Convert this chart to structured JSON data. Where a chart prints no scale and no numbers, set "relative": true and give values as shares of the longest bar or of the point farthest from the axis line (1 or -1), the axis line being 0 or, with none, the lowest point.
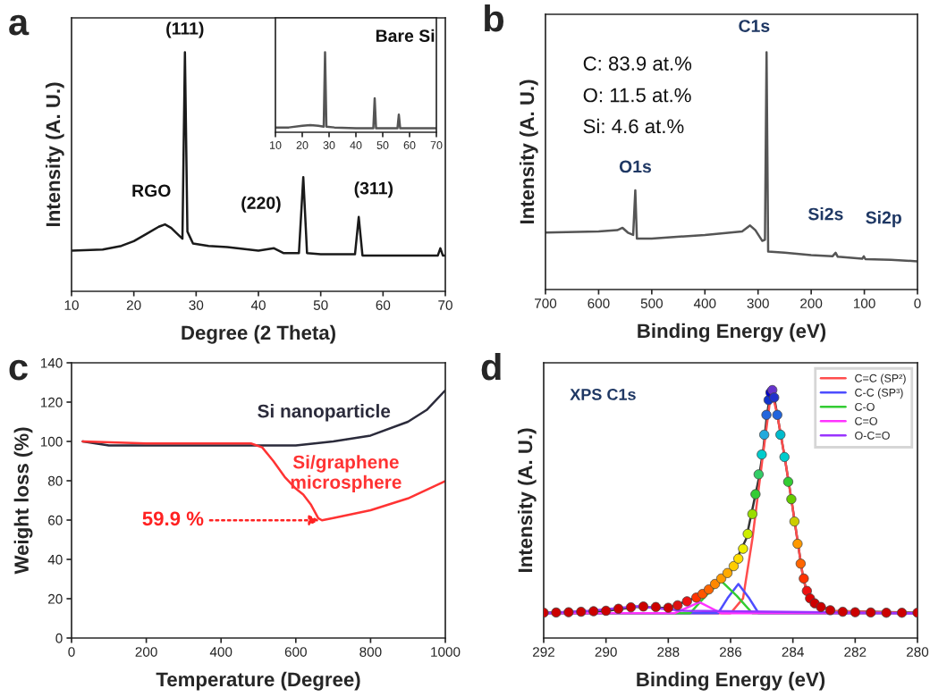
{
  "chart_data": [
    {
      "type": "line",
      "title": "a",
      "xlabel": "Degree (2 Theta)",
      "ylabel": "Intensity (A. U.)",
      "relative": true,
      "xlim": [
        10,
        70
      ],
      "xticks": [
        10,
        20,
        30,
        40,
        50,
        60,
        70
      ],
      "series": [
        {
          "color": "#1a1a1a",
          "x": [
            10,
            15,
            18,
            20,
            22,
            24,
            25,
            26,
            27,
            27.8,
            28.2,
            28.6,
            29.5,
            32,
            35,
            40,
            42.5,
            44,
            46.5,
            47.2,
            47.8,
            50,
            55.5,
            56.1,
            56.7,
            60,
            65,
            68.8,
            69.2,
            69.6,
            70
          ],
          "values": [
            0.17,
            0.175,
            0.19,
            0.21,
            0.24,
            0.27,
            0.28,
            0.265,
            0.24,
            0.22,
            1.0,
            0.25,
            0.2,
            0.19,
            0.185,
            0.17,
            0.18,
            0.16,
            0.16,
            0.478,
            0.16,
            0.155,
            0.155,
            0.311,
            0.15,
            0.15,
            0.15,
            0.15,
            0.18,
            0.15,
            0.15
          ]
        }
      ],
      "annotations": [
        {
          "text": "RGO",
          "x": 24.8,
          "y": 0.28
        },
        {
          "text": "(111)",
          "x": 28.2,
          "y": 1.0
        },
        {
          "text": "(220)",
          "x": 47.2,
          "y": 0.478
        },
        {
          "text": "(311)",
          "x": 56.1,
          "y": 0.311
        }
      ]
    },
    {
      "type": "line",
      "relative": true,
      "xlim": [
        10,
        70
      ],
      "xticks": [
        10,
        20,
        30,
        40,
        50,
        60,
        70
      ],
      "series": [
        {
          "color": "#555555",
          "x": [
            10,
            15,
            20,
            23,
            26,
            28,
            28.5,
            29,
            32,
            40,
            46.5,
            47,
            47.5,
            50,
            55.5,
            56,
            56.5,
            60,
            70
          ],
          "values": [
            0.06,
            0.06,
            0.08,
            0.09,
            0.08,
            0.07,
            1.0,
            0.07,
            0.06,
            0.05,
            0.05,
            0.425,
            0.05,
            0.05,
            0.05,
            0.22,
            0.05,
            0.05,
            0.05
          ]
        }
      ],
      "annotations": [
        "Bare Si"
      ]
    },
    {
      "type": "line",
      "title": "b",
      "xlabel": "Binding Energy (eV)",
      "ylabel": "Intensity (A. U.)",
      "relative": true,
      "xlim": [
        700,
        0
      ],
      "xticks": [
        700,
        600,
        500,
        400,
        300,
        200,
        100,
        0
      ],
      "series": [
        {
          "color": "#555555",
          "x": [
            700,
            600,
            565,
            555,
            545,
            535,
            531,
            528,
            500,
            400,
            330,
            315,
            305,
            292,
            287,
            284,
            281,
            250,
            200,
            160,
            154,
            150,
            104,
            101,
            98,
            50,
            0
          ],
          "values": [
            0.24,
            0.245,
            0.25,
            0.26,
            0.24,
            0.23,
            0.418,
            0.215,
            0.215,
            0.23,
            0.245,
            0.27,
            0.25,
            0.205,
            0.21,
            1.0,
            0.16,
            0.155,
            0.145,
            0.14,
            0.155,
            0.138,
            0.13,
            0.14,
            0.128,
            0.125,
            0.119
          ]
        }
      ],
      "annotations": [
        "C: 83.9 at.%",
        "O: 11.5 at.%",
        "Si: 4.6 at.%",
        {
          "text": "O1s",
          "x": 531,
          "y": 0.418
        },
        {
          "text": "C1s",
          "x": 284,
          "y": 1.0
        },
        {
          "text": "Si2s",
          "x": 154,
          "y": 0.155
        },
        {
          "text": "Si2p",
          "x": 101,
          "y": 0.14
        }
      ]
    },
    {
      "type": "line",
      "title": "c",
      "xlabel": "Temperature (Degree)",
      "ylabel": "Weight loss (%)",
      "xlim": [
        0,
        1000
      ],
      "xticks": [
        0,
        200,
        400,
        600,
        800,
        1000
      ],
      "ylim": [
        0,
        140
      ],
      "yticks": [
        0,
        20,
        40,
        60,
        80,
        100,
        120,
        140
      ],
      "series": [
        {
          "name": "Si nanoparticle",
          "color": "#2b2b3b",
          "x": [
            30,
            100,
            300,
            500,
            600,
            700,
            800,
            900,
            950,
            1000
          ],
          "values": [
            100,
            98,
            98,
            98,
            98,
            100,
            103,
            110,
            116,
            126
          ]
        },
        {
          "name": "Si/graphene\nmicrosphere",
          "color": "#ff3333",
          "x": [
            30,
            200,
            400,
            480,
            510,
            540,
            570,
            600,
            620,
            640,
            660,
            670,
            700,
            800,
            900,
            1000
          ],
          "values": [
            100,
            99,
            99,
            99,
            97,
            90,
            82,
            76,
            73,
            68,
            61,
            59.9,
            61,
            65,
            71,
            79.8
          ]
        }
      ],
      "annotations": [
        {
          "text": "59.9 %",
          "x": 670,
          "y": 59.9
        }
      ]
    },
    {
      "type": "line",
      "title": "d",
      "xlabel": "Binding Energy (eV)",
      "ylabel": "Intensity (A. U.)",
      "relative": true,
      "xlim": [
        292,
        280
      ],
      "xticks": [
        292,
        290,
        288,
        286,
        284,
        282,
        280
      ],
      "legend": "top right",
      "series": [
        {
          "color": "#333333",
          "x": [
            292,
            290,
            289,
            288,
            287.5,
            287,
            286.5,
            286,
            285.5,
            285.3,
            285.1,
            284.95,
            284.85,
            284.75,
            284.69,
            284.6,
            284.5,
            284.27,
            284.06,
            283.83,
            283.67,
            283.54,
            283.25,
            282.68,
            280
          ],
          "values": [
            0.102,
            0.109,
            0.126,
            0.121,
            0.145,
            0.169,
            0.218,
            0.266,
            0.4,
            0.52,
            0.64,
            0.76,
            0.88,
            0.97,
            1.0,
            0.97,
            0.9,
            0.734,
            0.569,
            0.375,
            0.242,
            0.182,
            0.133,
            0.109,
            0.102
          ]
        },
        {
          "name": "C=C (SP²)",
          "color": "#ff4d4d",
          "x": [
            292,
            286,
            285.6,
            285.3,
            285,
            284.69,
            284.5,
            284.27,
            284.06,
            283.83,
            283.67,
            283.54,
            283.25,
            282.68,
            280
          ],
          "values": [
            0.1,
            0.1,
            0.16,
            0.4,
            0.7,
            1.0,
            0.9,
            0.734,
            0.569,
            0.375,
            0.242,
            0.182,
            0.133,
            0.109,
            0.1
          ]
        },
        {
          "name": "C-C (SP³)",
          "color": "#4d4dff",
          "x": [
            292,
            286.4,
            286.1,
            285.75,
            285.4,
            285.1,
            280
          ],
          "values": [
            0.1,
            0.1,
            0.16,
            0.218,
            0.16,
            0.1,
            0.1
          ]
        },
        {
          "name": "C-O",
          "color": "#33cc33",
          "x": [
            292,
            287.3,
            286.8,
            286.3,
            285.8,
            285.3,
            280
          ],
          "values": [
            0.1,
            0.1,
            0.17,
            0.23,
            0.17,
            0.1,
            0.1
          ]
        },
        {
          "name": "C=O",
          "color": "#ff33ff",
          "x": [
            292,
            287.8,
            287.0,
            286.3,
            280
          ],
          "values": [
            0.1,
            0.1,
            0.145,
            0.1,
            0.1
          ]
        },
        {
          "name": "O-C=O",
          "color": "#9933ff",
          "x": [
            292,
            290.5,
            289,
            287.5,
            280
          ],
          "values": [
            0.1,
            0.11,
            0.128,
            0.11,
            0.1
          ]
        },
        {
          "type": "scatter",
          "x": [
            292,
            291.6,
            291.2,
            290.8,
            290.4,
            290,
            289.6,
            289.2,
            288.8,
            288.4,
            288.0,
            287.7,
            287.4,
            287.1,
            286.9,
            286.7,
            286.5,
            286.3,
            286.1,
            285.9,
            285.75,
            285.6,
            285.45,
            285.3,
            285.2,
            285.1,
            285.0,
            284.92,
            284.85,
            284.78,
            284.72,
            284.66,
            284.6,
            284.5,
            284.4,
            284.27,
            284.15,
            284.05,
            283.95,
            283.85,
            283.75,
            283.65,
            283.55,
            283.45,
            283.3,
            283.1,
            282.8,
            282.4,
            282,
            281.5,
            281,
            280.5,
            280
          ],
          "values": [
            0.102,
            0.103,
            0.104,
            0.106,
            0.108,
            0.11,
            0.118,
            0.124,
            0.127,
            0.125,
            0.122,
            0.132,
            0.148,
            0.163,
            0.178,
            0.196,
            0.218,
            0.24,
            0.262,
            0.29,
            0.32,
            0.36,
            0.42,
            0.5,
            0.58,
            0.66,
            0.74,
            0.82,
            0.9,
            0.96,
            0.99,
            1.0,
            0.97,
            0.9,
            0.82,
            0.73,
            0.63,
            0.56,
            0.47,
            0.38,
            0.3,
            0.24,
            0.19,
            0.16,
            0.14,
            0.125,
            0.112,
            0.106,
            0.104,
            0.103,
            0.102,
            0.102,
            0.102
          ],
          "colors": [
            "#cc0000",
            "#cc0000",
            "#cc0000",
            "#cc0000",
            "#cc0000",
            "#cc0000",
            "#cc0000",
            "#cc0000",
            "#cc0000",
            "#cc0000",
            "#cc0000",
            "#dd1111",
            "#ee1111",
            "#ff3300",
            "#ff5500",
            "#ff6600",
            "#ff8800",
            "#ff9900",
            "#ffaa00",
            "#ffcc00",
            "#ffdd00",
            "#eeee00",
            "#ccee00",
            "#99dd00",
            "#33cc33",
            "#33cc66",
            "#00cccc",
            "#22aadd",
            "#2266dd",
            "#1133cc",
            "#0000cc",
            "#6633cc",
            "#2233cc",
            "#2266dd",
            "#00bbcc",
            "#00cccc",
            "#33cc33",
            "#66cc00",
            "#cccc00",
            "#ff9900",
            "#ff6600",
            "#ff3300",
            "#ee1111",
            "#dd0000",
            "#cc0000",
            "#cc0000",
            "#cc0000",
            "#cc0000",
            "#cc0000",
            "#cc0000",
            "#cc0000",
            "#cc0000",
            "#cc0000"
          ]
        }
      ],
      "annotations": [
        "XPS C1s"
      ]
    }
  ]
}
